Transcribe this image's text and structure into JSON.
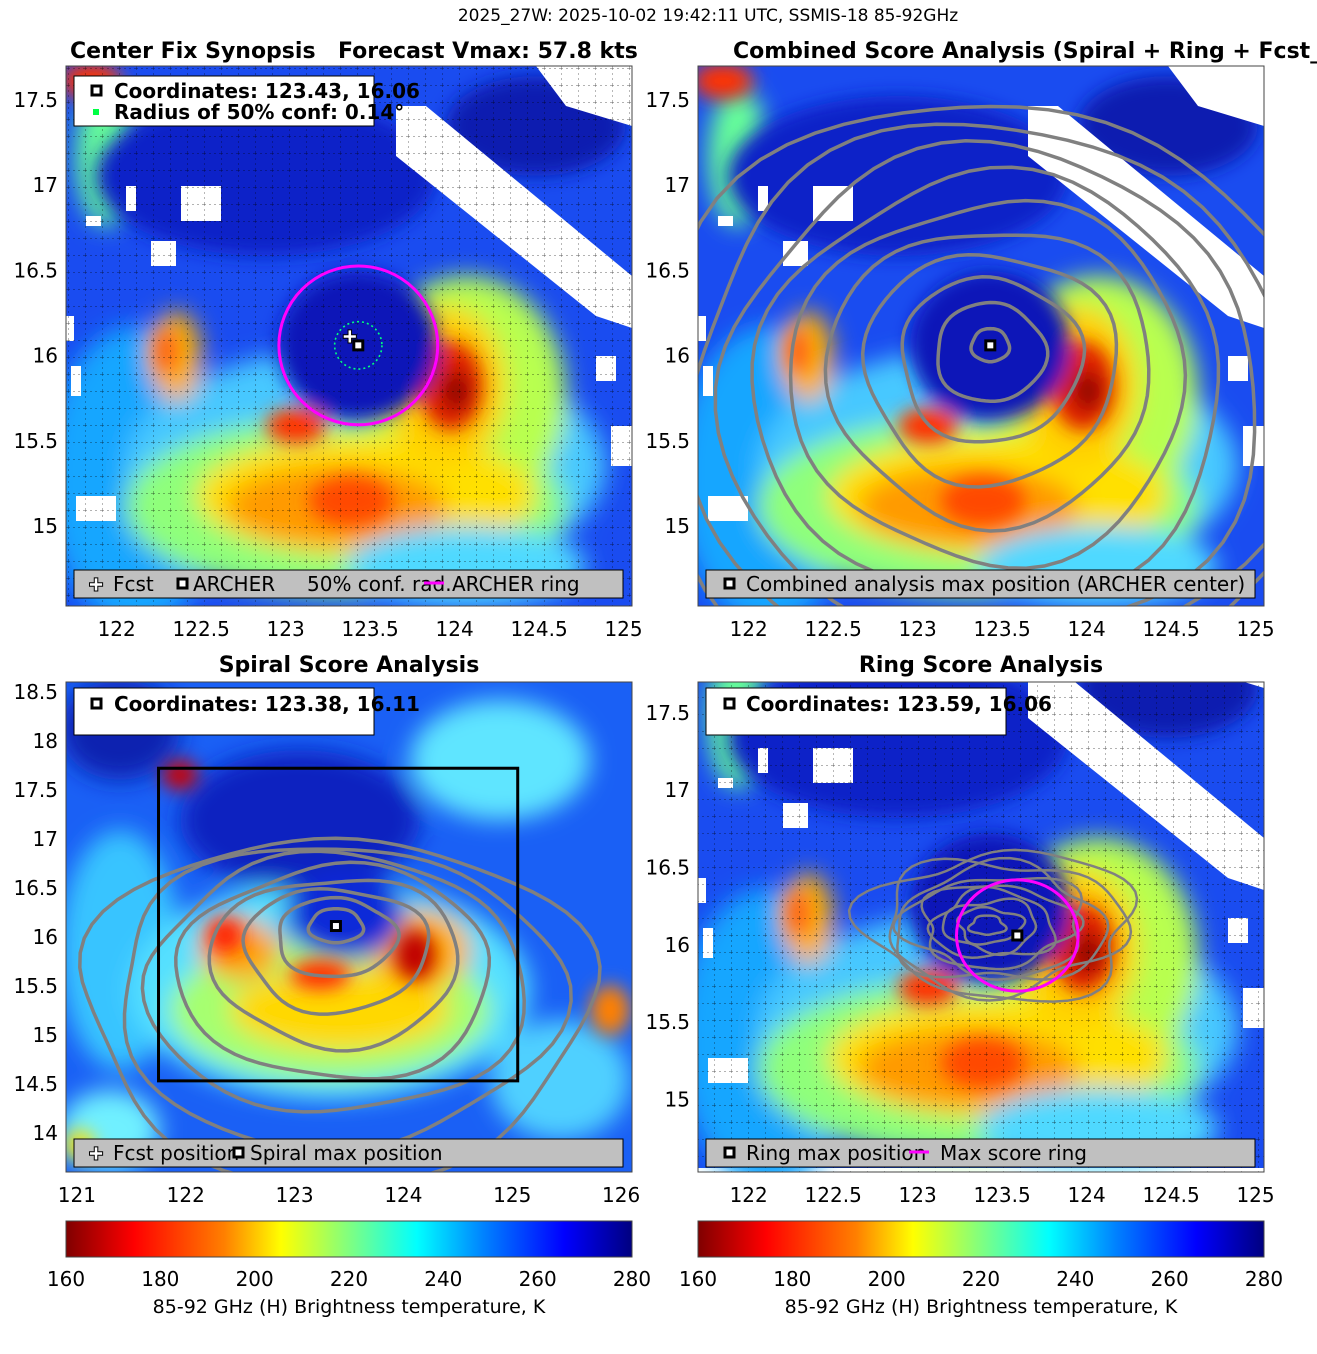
{
  "header": {
    "title": "2025_27W: 2025-10-02 19:42:11 UTC, SSMIS-18 85-92GHz"
  },
  "colors": {
    "ring": "#ff00ff",
    "contour": "#808080",
    "legend_bg": "#c0c0c0",
    "conf_circle": "#00ff7f",
    "colormap": [
      "#800000",
      "#ff0000",
      "#ff8000",
      "#ffff00",
      "#80ff80",
      "#00ffff",
      "#0080ff",
      "#0000ff",
      "#000080"
    ]
  },
  "chart_data": [
    {
      "id": "center-fix",
      "type": "heatmap",
      "title_left": "Center Fix Synopsis",
      "title_right": "Forecast Vmax: 57.8 kts",
      "xlim": [
        121.7,
        125.05
      ],
      "ylim": [
        14.53,
        17.7
      ],
      "xticks": [
        "122",
        "122.5",
        "123",
        "123.5",
        "124",
        "124.5",
        "125"
      ],
      "yticks": [
        "15",
        "15.5",
        "16",
        "16.5",
        "17",
        "17.5"
      ],
      "grid": true,
      "info_lines": [
        "Coordinates: 123.43, 16.06",
        "Radius of 50% conf: 0.14°"
      ],
      "center": [
        123.43,
        16.06
      ],
      "forecast_position": [
        123.38,
        16.11
      ],
      "conf_radius_deg": 0.14,
      "ring": {
        "center": [
          123.43,
          16.06
        ],
        "radius_deg": 0.47
      },
      "legend": [
        "Fcst",
        "ARCHER",
        "50% conf. rad.",
        "ARCHER ring"
      ]
    },
    {
      "id": "combined",
      "type": "heatmap",
      "title": "Combined Score Analysis (Spiral + Ring + Fcst_Pe",
      "xlim": [
        121.7,
        125.05
      ],
      "ylim": [
        14.53,
        17.7
      ],
      "xticks": [
        "122",
        "122.5",
        "123",
        "123.5",
        "124",
        "124.5",
        "125"
      ],
      "yticks": [
        "15",
        "15.5",
        "16",
        "16.5",
        "17",
        "17.5"
      ],
      "grid": false,
      "max_position": [
        123.43,
        16.06
      ],
      "contour_levels": 10,
      "legend": [
        "Combined analysis max position (ARCHER center)"
      ]
    },
    {
      "id": "spiral",
      "type": "heatmap",
      "title": "Spiral Score Analysis",
      "xlim": [
        120.9,
        126.1
      ],
      "ylim": [
        13.6,
        18.6
      ],
      "xticks": [
        "121",
        "122",
        "123",
        "124",
        "125",
        "126"
      ],
      "yticks": [
        "14",
        "14.5",
        "15",
        "15.5",
        "16",
        "16.5",
        "17",
        "17.5",
        "18",
        "18.5"
      ],
      "grid": false,
      "info_lines": [
        "Coordinates: 123.38, 16.11"
      ],
      "max_position": [
        123.38,
        16.11
      ],
      "box": {
        "x": [
          121.75,
          125.05
        ],
        "y": [
          14.53,
          17.72
        ]
      },
      "legend": [
        "Fcst position",
        "Spiral max position"
      ]
    },
    {
      "id": "ring",
      "type": "heatmap",
      "title": "Ring Score Analysis",
      "xlim": [
        121.7,
        125.05
      ],
      "ylim": [
        14.53,
        17.7
      ],
      "xticks": [
        "122",
        "122.5",
        "123",
        "123.5",
        "124",
        "124.5",
        "125"
      ],
      "yticks": [
        "15",
        "15.5",
        "16",
        "16.5",
        "17",
        "17.5"
      ],
      "grid": true,
      "info_lines": [
        "Coordinates: 123.59, 16.06"
      ],
      "max_position": [
        123.59,
        16.06
      ],
      "ring": {
        "center": [
          123.59,
          16.06
        ],
        "radius_deg": 0.36
      },
      "legend": [
        "Ring max position",
        "Max score ring"
      ]
    }
  ],
  "colorbars": [
    {
      "range": [
        160,
        280
      ],
      "ticks": [
        "160",
        "180",
        "200",
        "220",
        "240",
        "260",
        "280"
      ],
      "label": "85-92 GHz (H) Brightness temperature, K"
    },
    {
      "range": [
        160,
        280
      ],
      "ticks": [
        "160",
        "180",
        "200",
        "220",
        "240",
        "260",
        "280"
      ],
      "label": "85-92 GHz (H) Brightness temperature, K"
    }
  ]
}
